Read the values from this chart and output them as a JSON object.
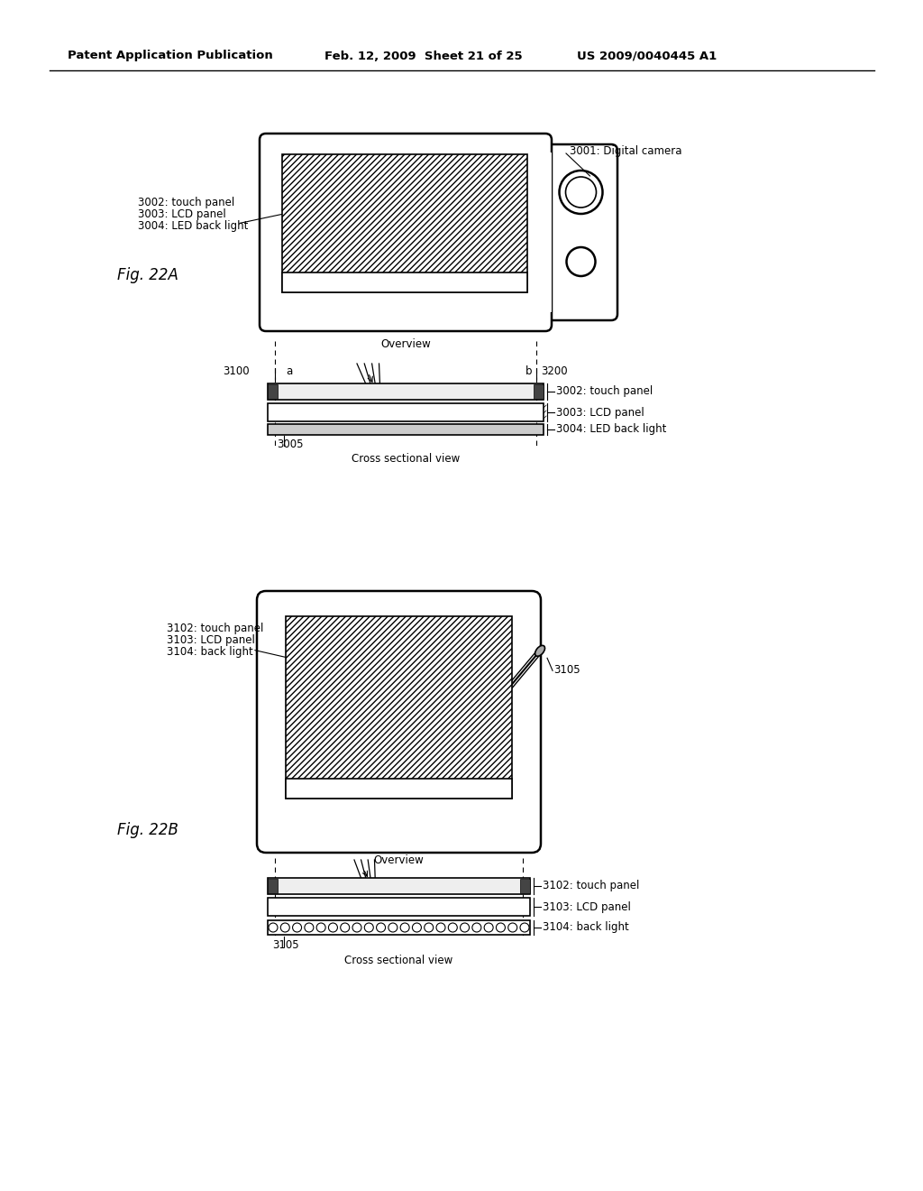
{
  "bg_color": "#ffffff",
  "header_text": "Patent Application Publication",
  "header_date": "Feb. 12, 2009  Sheet 21 of 25",
  "header_patent": "US 2009/0040445 A1",
  "fig_label_A": "Fig. 22A",
  "fig_label_B": "Fig. 22B",
  "label_3001": "3001: Digital camera",
  "label_3002a": "3002: touch panel",
  "label_3003a": "3003: LCD panel",
  "label_3004a": "3004: LED back light",
  "label_3100": "3100",
  "label_3200": "3200",
  "label_a": "a",
  "label_b": "b",
  "label_3002b": "3002: touch panel",
  "label_3003b": "3003: LCD panel",
  "label_3004b": "3004: LED back light",
  "label_3005": "3005",
  "label_overview_a": "Overview",
  "label_cross_a": "Cross sectional view",
  "label_3102": "3102: touch panel",
  "label_3103": "3103: LCD panel",
  "label_3104": "3104: back light",
  "label_3105a": "3105",
  "label_3105b": "3105",
  "label_3102b": "3102: touch panel",
  "label_3103b": "3103: LCD panel",
  "label_3104b": "3104: back light",
  "label_overview_b": "Overview",
  "label_cross_b": "Cross sectional view"
}
